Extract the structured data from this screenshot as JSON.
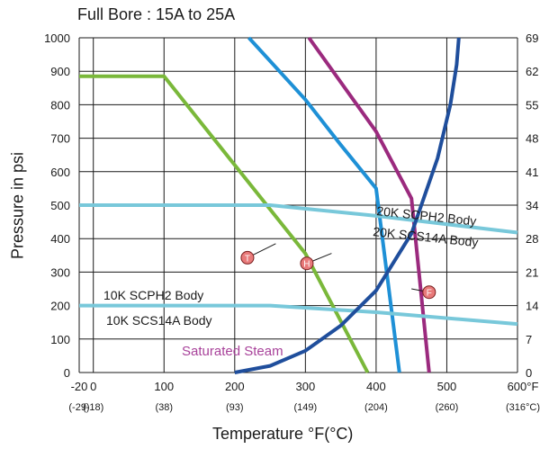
{
  "title": "Full Bore : 15A  to 25A",
  "chart_data": {
    "type": "line",
    "title": "Full Bore : 15A  to 25A",
    "xlabel": "Temperature °F(°C)",
    "ylabel": "Pressure in psi",
    "xlim": [
      -20,
      600
    ],
    "ylim": [
      0,
      1000
    ],
    "x_ticks": [
      "-20",
      "0",
      "100",
      "200",
      "300",
      "400",
      "500",
      "600°F"
    ],
    "x_ticks_c": [
      "(-29)",
      "(-18)",
      "(38)",
      "(93)",
      "(149)",
      "(204)",
      "(260)",
      "(316°C)"
    ],
    "y_ticks": [
      "0",
      "100",
      "200",
      "300",
      "400",
      "500",
      "600",
      "700",
      "800",
      "900",
      "1000"
    ],
    "y2_ticks": [
      "0",
      "7",
      "14",
      "21",
      "28",
      "34",
      "41",
      "48",
      "55",
      "62",
      "69"
    ],
    "grid": true,
    "series": [
      {
        "marker": "T",
        "color": "#7ab83a",
        "points": [
          [
            -20,
            885
          ],
          [
            100,
            885
          ],
          [
            200,
            620
          ],
          [
            300,
            355
          ],
          [
            388,
            0
          ]
        ]
      },
      {
        "marker": "H",
        "color": "#1e90d6",
        "points": [
          [
            220,
            1000
          ],
          [
            300,
            815
          ],
          [
            350,
            680
          ],
          [
            400,
            550
          ],
          [
            433,
            0
          ]
        ]
      },
      {
        "marker": "F",
        "color": "#9b2a7e",
        "points": [
          [
            305,
            1000
          ],
          [
            400,
            720
          ],
          [
            450,
            520
          ],
          [
            475,
            0
          ]
        ]
      },
      {
        "name": "20K SCPH2 Body / 20K SCS14A Body",
        "color": "#78c8da",
        "points": [
          [
            -20,
            500
          ],
          [
            250,
            500
          ],
          [
            400,
            468
          ],
          [
            600,
            418
          ]
        ]
      },
      {
        "name": "10K SCPH2 Body / 10K SCS14A Body",
        "color": "#78c8da",
        "points": [
          [
            -20,
            200
          ],
          [
            250,
            200
          ],
          [
            400,
            180
          ],
          [
            600,
            145
          ]
        ]
      },
      {
        "name": "Saturated Steam",
        "color": "#1f4e9c",
        "points": [
          [
            200,
            0
          ],
          [
            250,
            20
          ],
          [
            300,
            65
          ],
          [
            350,
            140
          ],
          [
            400,
            245
          ],
          [
            450,
            415
          ],
          [
            487,
            640
          ],
          [
            505,
            800
          ],
          [
            514,
            920
          ],
          [
            517,
            1000
          ]
        ]
      }
    ],
    "labels": {
      "k20_scph2": "20K SCPH2 Body",
      "k20_scs14a": "20K SCS14A Body",
      "k10_scph2": "10K SCPH2 Body",
      "k10_scs14a": "10K SCS14A Body",
      "steam": "Saturated Steam"
    },
    "colors": {
      "steam_label": "#a8429a",
      "marker_fill": "#e87a7a",
      "grid": "#1a1a1a"
    }
  }
}
